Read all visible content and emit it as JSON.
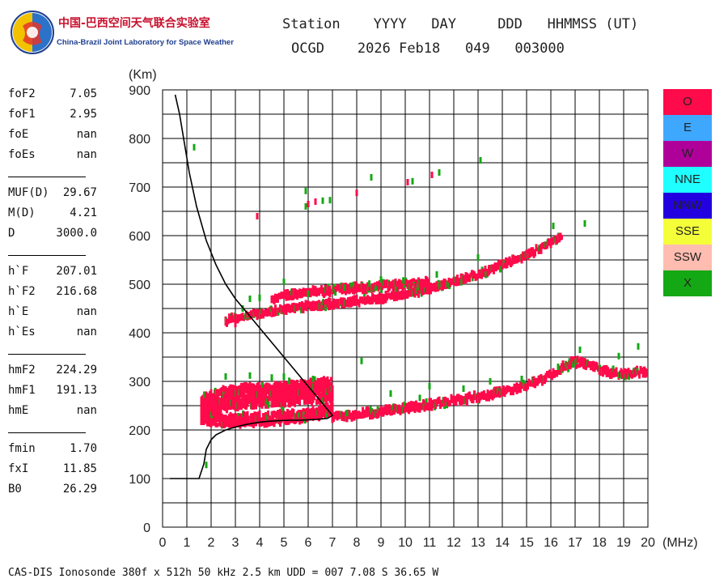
{
  "logo": {
    "cn_text": "中国-巴西空间天气联合实验室",
    "en_text": "China-Brazil Joint Laboratory for Space Weather"
  },
  "header": {
    "line1": [
      "Station",
      "YYYY",
      "DAY",
      "DDD",
      "HHMMSS (UT)"
    ],
    "line2": [
      "OCGD",
      "2026 Feb18",
      "049",
      "003000"
    ]
  },
  "params": {
    "group1": [
      {
        "k": "foF2",
        "v": "7.05"
      },
      {
        "k": "foF1",
        "v": "2.95"
      },
      {
        "k": "foE",
        "v": "nan"
      },
      {
        "k": "foEs",
        "v": "nan"
      }
    ],
    "group2": [
      {
        "k": "MUF(D)",
        "v": "29.67"
      },
      {
        "k": "M(D)",
        "v": "4.21"
      },
      {
        "k": "D",
        "v": "3000.0"
      }
    ],
    "group3": [
      {
        "k": "h`F",
        "v": "207.01"
      },
      {
        "k": "h`F2",
        "v": "216.68"
      },
      {
        "k": "h`E",
        "v": "nan"
      },
      {
        "k": "h`Es",
        "v": "nan"
      }
    ],
    "group4": [
      {
        "k": "hmF2",
        "v": "224.29"
      },
      {
        "k": "hmF1",
        "v": "191.13"
      },
      {
        "k": "hmE",
        "v": "nan"
      }
    ],
    "group5": [
      {
        "k": "fmin",
        "v": "1.70"
      },
      {
        "k": "fxI",
        "v": "11.85"
      },
      {
        "k": "B0",
        "v": "26.29"
      }
    ]
  },
  "legend": [
    {
      "label": "O",
      "color": "#ff0a4a"
    },
    {
      "label": "E",
      "color": "#3ea8ff"
    },
    {
      "label": "W",
      "color": "#b0009a"
    },
    {
      "label": "NNE",
      "color": "#1fffff"
    },
    {
      "label": "NNW",
      "color": "#2200e0"
    },
    {
      "label": "SSE",
      "color": "#f4ff3a"
    },
    {
      "label": "SSW",
      "color": "#ffbcb0"
    },
    {
      "label": "X",
      "color": "#14a814"
    }
  ],
  "footer": "CAS-DIS Ionosonde 380f x 512h 50 kHz 2.5 km UDD = 007 7.08 S 36.65 W",
  "chart_data": {
    "type": "scatter",
    "xlabel": "(MHz)",
    "ylabel": "(Km)",
    "xlim": [
      0,
      20
    ],
    "ylim": [
      0,
      900
    ],
    "xticks": [
      0,
      1,
      2,
      3,
      4,
      5,
      6,
      7,
      8,
      9,
      10,
      11,
      12,
      13,
      14,
      15,
      16,
      17,
      18,
      19,
      20
    ],
    "yticks": [
      0,
      100,
      200,
      300,
      400,
      500,
      600,
      700,
      800,
      900
    ],
    "grid": true,
    "legend_placement": "right",
    "series": [
      {
        "name": "O",
        "color": "#ff0a4a",
        "traces": [
          {
            "x": [
              1.6,
              2.0,
              2.5,
              3.0,
              3.5,
              4.0,
              4.5,
              5.0,
              5.5,
              6.0,
              6.5,
              7.0
            ],
            "y": [
              225,
              222,
              220,
              220,
              221,
              222,
              224,
              226,
              228,
              232,
              236,
              245
            ],
            "spread": 22
          },
          {
            "x": [
              1.6,
              2.0,
              2.5,
              3.0,
              3.5,
              4.0,
              4.5,
              5.0,
              5.5,
              6.0,
              6.5,
              7.0
            ],
            "y": [
              248,
              255,
              262,
              268,
              270,
              271,
              272,
              274,
              276,
              278,
              280,
              285
            ],
            "spread": 45
          },
          {
            "x": [
              7.0,
              8.0,
              9.0,
              10.0,
              11.0,
              12.0,
              13.0,
              14.0,
              15.0,
              15.5,
              16.0,
              16.5,
              17.0,
              17.5,
              18.0,
              18.5,
              19.0,
              19.5,
              20.0
            ],
            "y": [
              228,
              232,
              238,
              245,
              252,
              260,
              268,
              278,
              292,
              302,
              315,
              330,
              340,
              335,
              325,
              318,
              315,
              318,
              322
            ],
            "spread": 14
          },
          {
            "x": [
              2.6,
              3.0,
              4.0,
              5.0,
              6.0,
              7.0,
              8.0,
              9.0,
              10.0,
              11.0,
              12.0,
              13.0,
              14.0,
              15.0,
              16.0,
              16.5
            ],
            "y": [
              425,
              430,
              440,
              448,
              455,
              460,
              466,
              472,
              480,
              490,
              505,
              520,
              540,
              560,
              585,
              600
            ],
            "spread": 12
          },
          {
            "x": [
              4.5,
              5.0,
              6.0,
              7.0,
              8.0,
              9.0,
              10.0,
              11.0
            ],
            "y": [
              470,
              475,
              482,
              488,
              492,
              496,
              500,
              505
            ],
            "spread": 14
          }
        ]
      },
      {
        "name": "X",
        "color": "#14a814",
        "points": [
          {
            "x": 1.3,
            "y": 782
          },
          {
            "x": 5.9,
            "y": 660
          },
          {
            "x": 5.9,
            "y": 692
          },
          {
            "x": 6.6,
            "y": 672
          },
          {
            "x": 6.9,
            "y": 673
          },
          {
            "x": 8.6,
            "y": 720
          },
          {
            "x": 10.3,
            "y": 712
          },
          {
            "x": 11.4,
            "y": 730
          },
          {
            "x": 13.1,
            "y": 755
          },
          {
            "x": 16.1,
            "y": 620
          },
          {
            "x": 17.4,
            "y": 625
          },
          {
            "x": 3.3,
            "y": 450
          },
          {
            "x": 3.6,
            "y": 470
          },
          {
            "x": 4.0,
            "y": 472
          },
          {
            "x": 5.0,
            "y": 505
          },
          {
            "x": 6.0,
            "y": 480
          },
          {
            "x": 7.5,
            "y": 493
          },
          {
            "x": 9.0,
            "y": 510
          },
          {
            "x": 11.3,
            "y": 520
          },
          {
            "x": 13.0,
            "y": 555
          },
          {
            "x": 2.6,
            "y": 310
          },
          {
            "x": 3.6,
            "y": 312
          },
          {
            "x": 4.5,
            "y": 308
          },
          {
            "x": 5.0,
            "y": 310
          },
          {
            "x": 6.2,
            "y": 305
          },
          {
            "x": 8.2,
            "y": 342
          },
          {
            "x": 9.4,
            "y": 275
          },
          {
            "x": 11.0,
            "y": 290
          },
          {
            "x": 12.4,
            "y": 285
          },
          {
            "x": 13.5,
            "y": 300
          },
          {
            "x": 14.8,
            "y": 305
          },
          {
            "x": 16.3,
            "y": 330
          },
          {
            "x": 17.2,
            "y": 365
          },
          {
            "x": 18.8,
            "y": 352
          },
          {
            "x": 19.6,
            "y": 372
          },
          {
            "x": 1.8,
            "y": 128
          },
          {
            "x": 7.6,
            "y": 235
          },
          {
            "x": 10.6,
            "y": 266
          }
        ]
      },
      {
        "name": "O (scattered)",
        "color": "#ff0a4a",
        "points": [
          {
            "x": 3.9,
            "y": 640
          },
          {
            "x": 8.0,
            "y": 688
          },
          {
            "x": 10.1,
            "y": 710
          },
          {
            "x": 11.1,
            "y": 725
          },
          {
            "x": 2.8,
            "y": 428
          },
          {
            "x": 3.0,
            "y": 418
          },
          {
            "x": 6.3,
            "y": 670
          },
          {
            "x": 6.0,
            "y": 665
          }
        ]
      }
    ],
    "profile_curve": {
      "name": "virtual height profile",
      "x": [
        0.52,
        0.7,
        0.9,
        1.1,
        1.4,
        1.8,
        2.2,
        2.6,
        3.0,
        3.5,
        4.0,
        4.5,
        5.0,
        5.5,
        6.0,
        6.5,
        7.0,
        6.8,
        6.4,
        6.0,
        5.6,
        5.2,
        4.8,
        4.4,
        4.0,
        3.5,
        3.0,
        2.6,
        2.2,
        2.0,
        1.9,
        1.8,
        1.7,
        1.6,
        1.5,
        1.0,
        0.5,
        0.3
      ],
      "y": [
        890,
        850,
        790,
        730,
        660,
        590,
        540,
        500,
        470,
        440,
        410,
        380,
        350,
        320,
        290,
        260,
        230,
        224,
        222,
        221,
        220,
        220,
        219,
        218,
        216,
        212,
        206,
        200,
        190,
        180,
        170,
        160,
        130,
        115,
        100,
        100,
        100,
        100
      ]
    }
  }
}
